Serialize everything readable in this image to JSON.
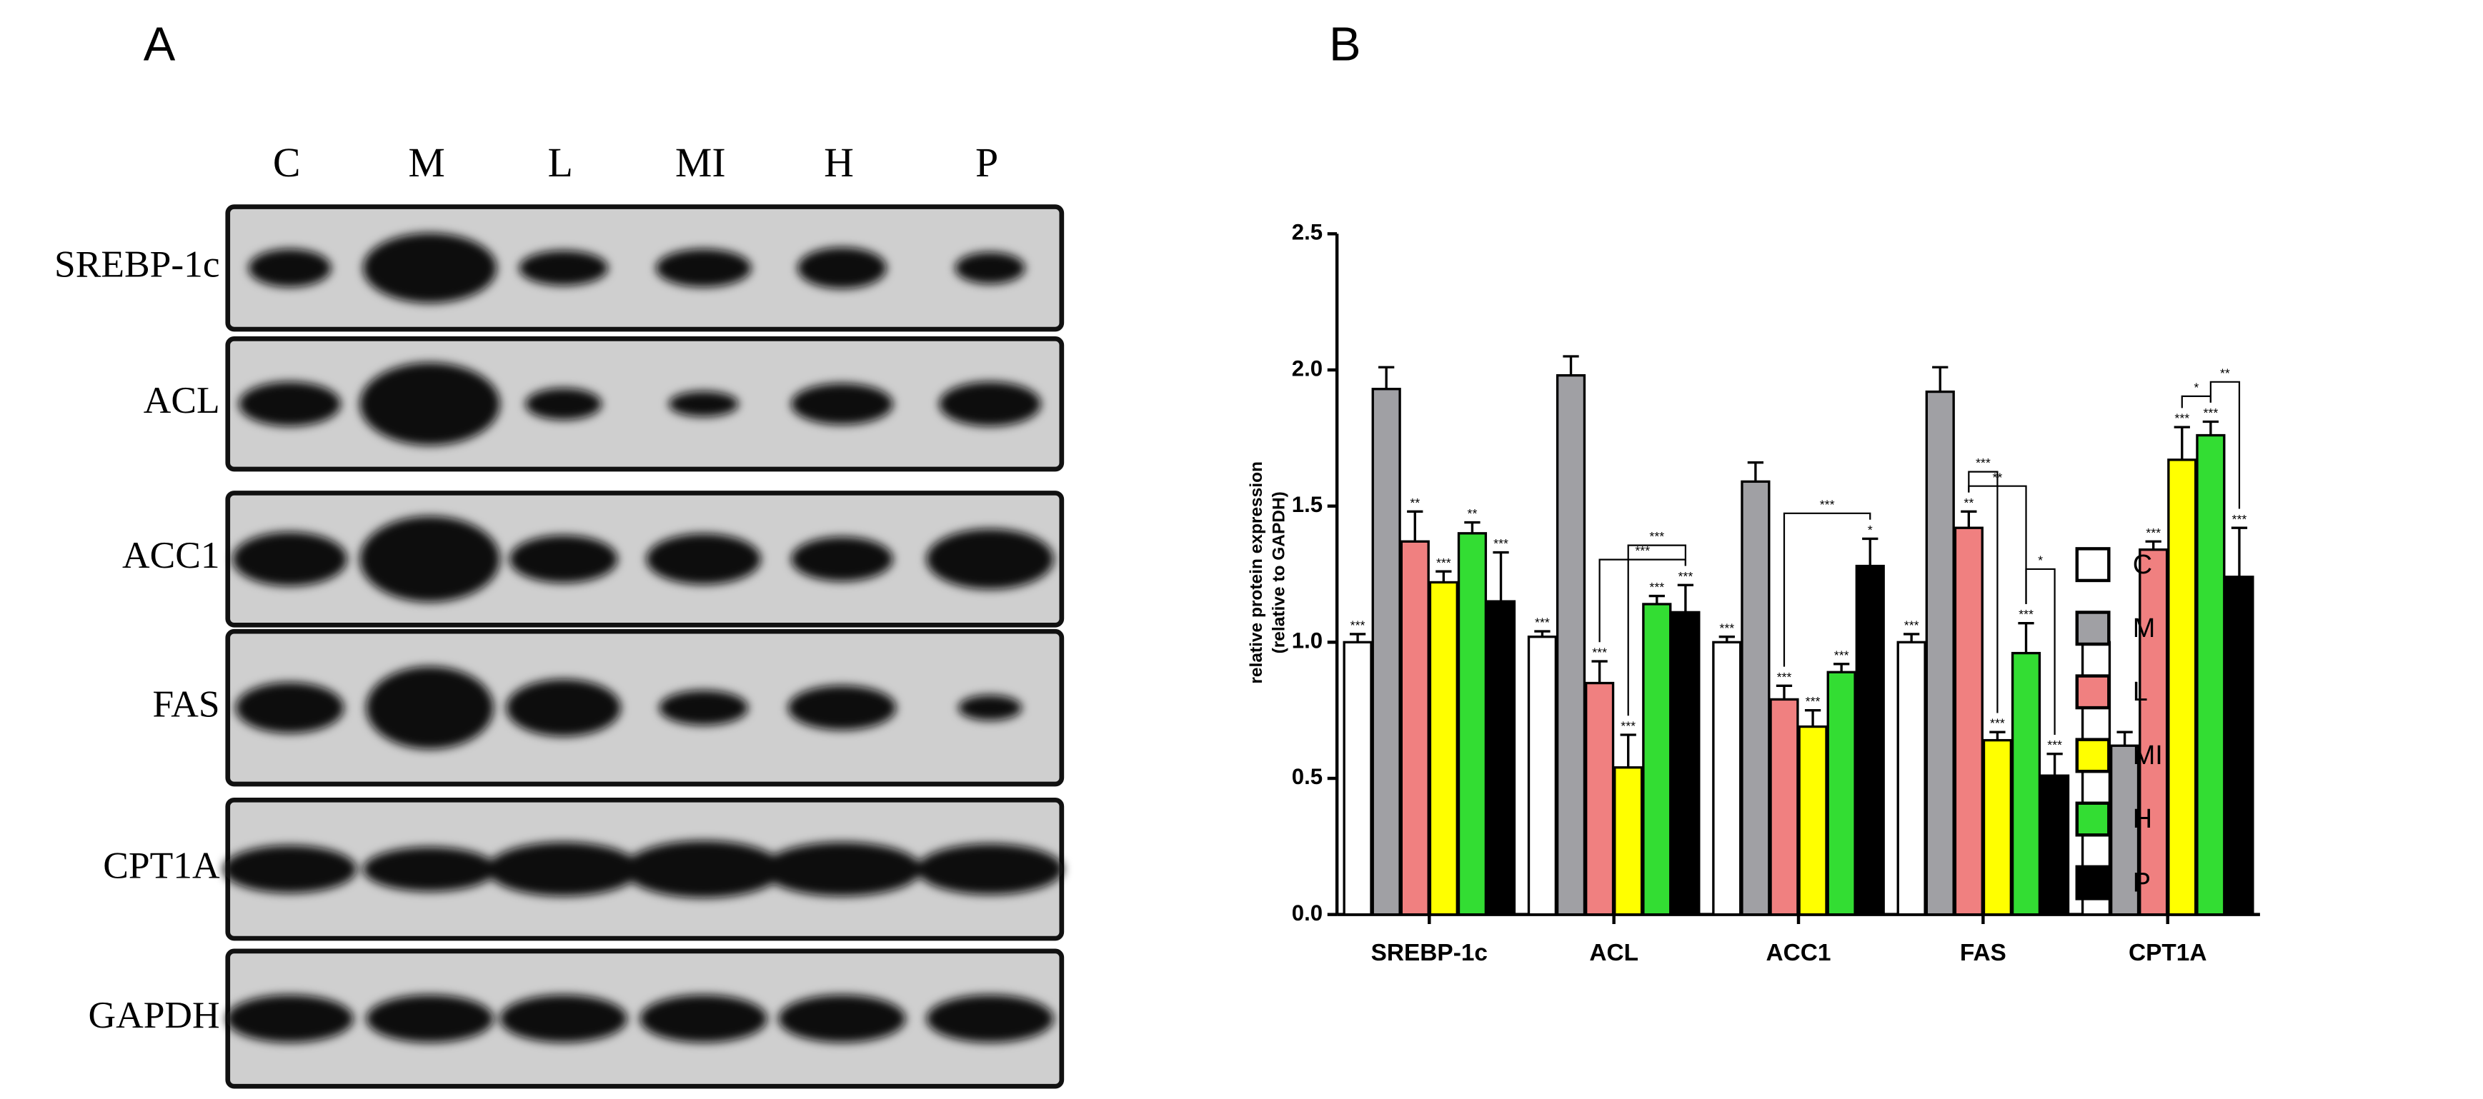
{
  "blot": {
    "panel_label": "A",
    "lanes": [
      "C",
      "M",
      "L",
      "MI",
      "H",
      "P"
    ],
    "proteins": [
      "SREBP-1c",
      "ACL",
      "ACC1",
      "FAS",
      "CPT1A",
      "GAPDH"
    ]
  },
  "chart_data": {
    "type": "bar",
    "panel_label": "B",
    "y_label": [
      "relative  protein expression",
      "(relative to GAPDH)"
    ],
    "categories": [
      "SREBP-1c",
      "ACL",
      "ACC1",
      "FAS",
      "CPT1A"
    ],
    "ylim": [
      0,
      2.5
    ],
    "yticks": [
      {
        "value": 0,
        "label": "0.0"
      },
      0.5,
      {
        "value": 1,
        "label": "1.0"
      },
      1.5,
      {
        "value": 2,
        "label": "2.0"
      },
      2.5
    ],
    "series": [
      {
        "name": "C",
        "color": "#ffffff",
        "values": [
          1.0,
          1.02,
          1.0,
          1.0,
          1.0
        ],
        "errors": [
          0.03,
          0.02,
          0.02,
          0.03,
          0.02
        ],
        "value_labels": [
          "***",
          "***",
          "***",
          "***",
          "***"
        ]
      },
      {
        "name": "M",
        "color": "#a0a0a4",
        "values": [
          1.93,
          1.98,
          1.59,
          1.92,
          0.62
        ],
        "errors": [
          0.08,
          0.07,
          0.07,
          0.09,
          0.05
        ],
        "value_labels": [
          null,
          null,
          null,
          null,
          null
        ]
      },
      {
        "name": "L",
        "color": "#f08080",
        "values": [
          1.37,
          0.85,
          0.79,
          1.42,
          1.34
        ],
        "errors": [
          0.11,
          0.08,
          0.05,
          0.06,
          0.03
        ],
        "value_labels": [
          "**",
          "***",
          "***",
          "**",
          "***"
        ]
      },
      {
        "name": "MI",
        "color": "#ffff00",
        "values": [
          1.22,
          0.54,
          0.69,
          0.64,
          1.67
        ],
        "errors": [
          0.04,
          0.12,
          0.06,
          0.03,
          0.12
        ],
        "value_labels": [
          "***",
          "***",
          "***",
          "***",
          "***"
        ]
      },
      {
        "name": "H",
        "color": "#33dd33",
        "values": [
          1.4,
          1.14,
          0.89,
          0.96,
          1.76
        ],
        "errors": [
          0.04,
          0.03,
          0.03,
          0.11,
          0.05
        ],
        "value_labels": [
          "**",
          "***",
          "***",
          "***",
          "***"
        ]
      },
      {
        "name": "P",
        "color": "#000000",
        "values": [
          1.15,
          1.11,
          1.28,
          0.51,
          1.24
        ],
        "errors": [
          0.18,
          0.1,
          0.1,
          0.08,
          0.18
        ],
        "value_labels": [
          "***",
          "***",
          "*",
          "***",
          "***"
        ]
      }
    ],
    "brackets": [
      {
        "category": "ACL",
        "from": "L",
        "to": "P",
        "label": "***"
      },
      {
        "category": "ACL",
        "from": "MI",
        "to": "P",
        "label": "***"
      },
      {
        "category": "ACC1",
        "from": "L",
        "to": "P",
        "label": "***"
      },
      {
        "category": "FAS",
        "from": "L",
        "to": "H",
        "label": "**"
      },
      {
        "category": "FAS",
        "from": "L",
        "to": "MI",
        "label": "***"
      },
      {
        "category": "FAS",
        "from": "H",
        "to": "P",
        "label": "*"
      },
      {
        "category": "CPT1A",
        "from": "MI",
        "to": "H",
        "label": "*"
      },
      {
        "category": "CPT1A",
        "from": "H",
        "to": "P",
        "label": "**"
      }
    ],
    "legend": "right"
  }
}
